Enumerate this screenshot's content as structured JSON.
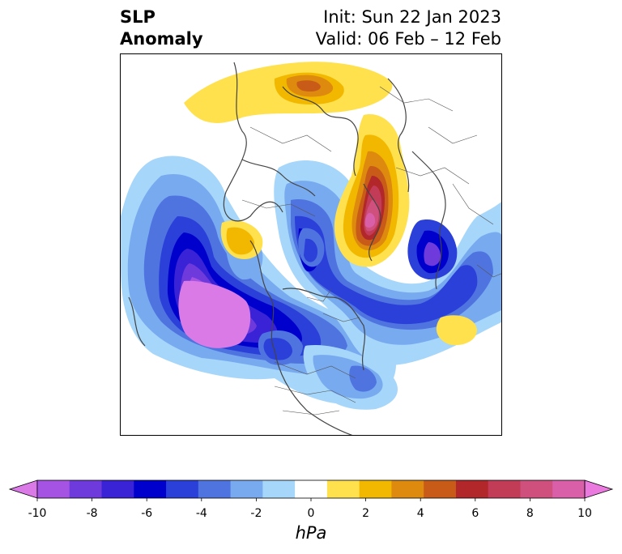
{
  "title": {
    "line1": "SLP",
    "line2": "Anomaly",
    "init": "Init: Sun 22 Jan 2023",
    "valid": "Valid: 06 Feb – 12 Feb"
  },
  "colorbar": {
    "units": "hPa",
    "ticks": [
      "-10",
      "-8",
      "-6",
      "-4",
      "-2",
      "0",
      "2",
      "4",
      "6",
      "8",
      "10"
    ],
    "colors": [
      "#d97ae6",
      "#a553e3",
      "#6e3adb",
      "#3a22d6",
      "#0000cc",
      "#2b3fd9",
      "#4f74e0",
      "#78aaf0",
      "#a6d6fa",
      "#ffffff",
      "#ffe14d",
      "#f2b800",
      "#dd8a0f",
      "#c85b18",
      "#b2272a",
      "#c23c57",
      "#cf4f7d",
      "#d95fa8",
      "#ea7ade"
    ],
    "extend": "both"
  }
}
